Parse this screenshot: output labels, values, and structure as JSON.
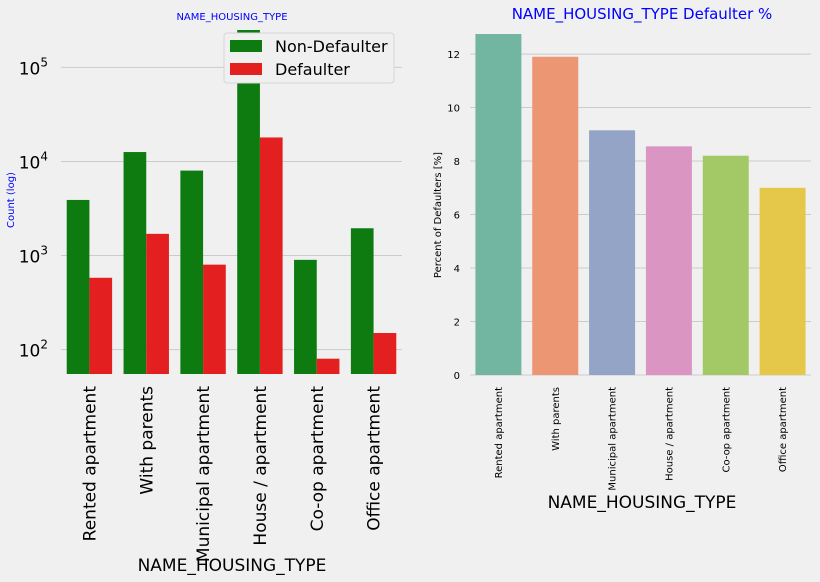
{
  "chart_data": [
    {
      "type": "bar",
      "title": "NAME_HOUSING_TYPE",
      "xlabel": "NAME_HOUSING_TYPE",
      "ylabel": "Count (log)",
      "yscale": "log",
      "ylim": [
        55,
        250000
      ],
      "y_ticks": [
        100,
        1000,
        10000,
        100000
      ],
      "y_tick_labels": [
        {
          "base": "10",
          "exp": "2"
        },
        {
          "base": "10",
          "exp": "3"
        },
        {
          "base": "10",
          "exp": "4"
        },
        {
          "base": "10",
          "exp": "5"
        }
      ],
      "grid": "horizontal",
      "legend_position": "top-right",
      "categories": [
        "Rented apartment",
        "With parents",
        "Municipal apartment",
        "House / apartment",
        "Co-op apartment",
        "Office apartment"
      ],
      "series": [
        {
          "name": "Non-Defaulter",
          "color": "#0e7b10",
          "values": [
            3900,
            12600,
            8000,
            250000,
            900,
            1950
          ]
        },
        {
          "name": "Defaulter",
          "color": "#e31f1f",
          "values": [
            580,
            1700,
            800,
            18000,
            80,
            150
          ]
        }
      ]
    },
    {
      "type": "bar",
      "title": "NAME_HOUSING_TYPE Defaulter %",
      "xlabel": "NAME_HOUSING_TYPE",
      "ylabel": "Percent of Defaulters [%]",
      "ylim": [
        0,
        12.9
      ],
      "y_ticks": [
        0,
        2,
        4,
        6,
        8,
        10,
        12
      ],
      "grid": "horizontal",
      "categories": [
        "Rented apartment",
        "With parents",
        "Municipal apartment",
        "House / apartment",
        "Co-op apartment",
        "Office apartment"
      ],
      "values": [
        12.75,
        11.9,
        9.15,
        8.55,
        8.2,
        7.0
      ],
      "colors": [
        "#72b6a1",
        "#ec9673",
        "#93a4c6",
        "#db95c3",
        "#a3c967",
        "#e5c84a"
      ]
    }
  ],
  "colors": {
    "background": "#f0f0f0",
    "title": "#0000ff",
    "grid": "#cbcbcb"
  }
}
